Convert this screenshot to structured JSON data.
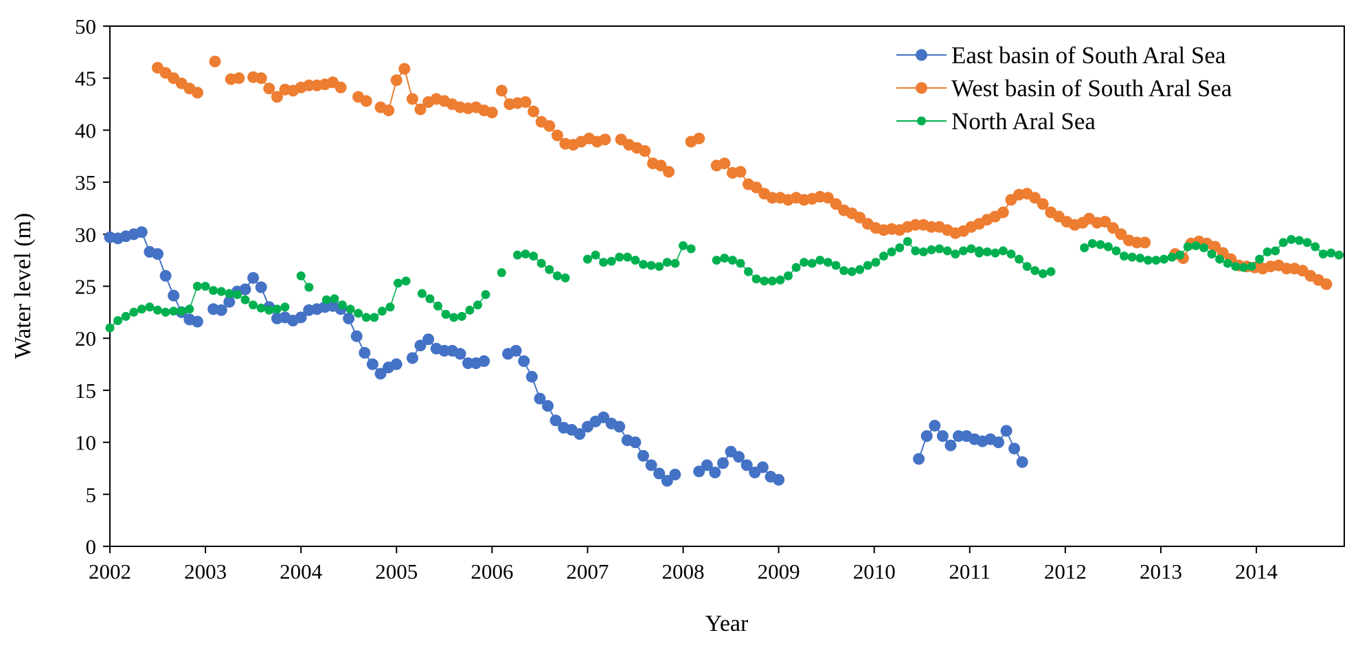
{
  "chart_data": {
    "type": "line",
    "title": "",
    "xlabel": "Year",
    "ylabel": "Water level (m)",
    "xlim": [
      2002.0,
      2014.92
    ],
    "ylim": [
      0,
      50
    ],
    "grid": false,
    "legend_position": "top-right",
    "x_ticks": [
      "2002",
      "2003",
      "2004",
      "2005",
      "2006",
      "2007",
      "2008",
      "2009",
      "2010",
      "2011",
      "2012",
      "2013",
      "2014"
    ],
    "y_ticks": [
      "0",
      "5",
      "10",
      "15",
      "20",
      "25",
      "30",
      "35",
      "40",
      "45",
      "50"
    ],
    "series": [
      {
        "name": "East basin of South Aral Sea",
        "color": "#4472C4",
        "marker_size": "large",
        "segments": [
          {
            "start": 2002.0,
            "step": 0.0833,
            "values": [
              29.7,
              29.6,
              29.8,
              30.0,
              30.2,
              28.3,
              28.1,
              26.0,
              24.1,
              22.5,
              21.8,
              21.6
            ]
          },
          {
            "start": 2003.0833,
            "step": 0.0833,
            "values": [
              22.8,
              22.7,
              23.5,
              24.5,
              24.7,
              25.8,
              24.9,
              23.0,
              21.9,
              22.0,
              21.7,
              22.0,
              22.7,
              22.8,
              23.0,
              23.1,
              22.8,
              21.9,
              20.2,
              18.6,
              17.5,
              16.6,
              17.2,
              17.5
            ]
          },
          {
            "start": 2005.1667,
            "step": 0.0833,
            "values": [
              18.1,
              19.3,
              19.9,
              19.0,
              18.8,
              18.8,
              18.5,
              17.6,
              17.6,
              17.8
            ]
          },
          {
            "start": 2006.1667,
            "step": 0.0833,
            "values": [
              18.5,
              18.8,
              17.8,
              16.3,
              14.2,
              13.5,
              12.1,
              11.4,
              11.2,
              10.8,
              11.5,
              12.0,
              12.4,
              11.8,
              11.5,
              10.2,
              10.0,
              8.7,
              7.8,
              7.0,
              6.3,
              6.9
            ]
          },
          {
            "start": 2008.1667,
            "step": 0.0833,
            "values": [
              7.2,
              7.8,
              7.1,
              8.0,
              9.1,
              8.6,
              7.8,
              7.1,
              7.6,
              6.7,
              6.4
            ]
          },
          {
            "start": 2010.4667,
            "step": 0.0833,
            "values": [
              8.4,
              10.6,
              11.6,
              10.6,
              9.7,
              10.6,
              10.6,
              10.3,
              10.1,
              10.3,
              10.0,
              11.1,
              9.4,
              8.1
            ]
          }
        ]
      },
      {
        "name": "West basin of South Aral Sea",
        "color": "#ED7D31",
        "marker_size": "large",
        "segments": [
          {
            "start": 2002.5,
            "step": 0.0833,
            "values": [
              46.0,
              45.5,
              45.0,
              44.5,
              44.0,
              43.6
            ]
          },
          {
            "start": 2003.1,
            "step": 0.0833,
            "values": [
              46.6
            ]
          },
          {
            "start": 2003.2667,
            "step": 0.0833,
            "values": [
              44.9,
              45.0
            ]
          },
          {
            "start": 2003.5,
            "step": 0.0833,
            "values": [
              45.1,
              45.0,
              44.0,
              43.2,
              43.9,
              43.8,
              44.1,
              44.3,
              44.3,
              44.4,
              44.6,
              44.1
            ]
          },
          {
            "start": 2004.6,
            "step": 0.0833,
            "values": [
              43.2,
              42.8
            ]
          },
          {
            "start": 2004.8333,
            "step": 0.0833,
            "values": [
              42.2,
              41.9,
              44.8,
              45.9,
              43.0,
              42.0,
              42.7,
              43.0,
              42.8,
              42.5,
              42.2,
              42.1,
              42.2,
              41.9,
              41.7
            ]
          },
          {
            "start": 2006.1,
            "step": 0.0833,
            "values": [
              43.8,
              42.5,
              42.6,
              42.7,
              41.8,
              40.8,
              40.4,
              39.5,
              38.7,
              38.6,
              38.9,
              39.2,
              38.9,
              39.1
            ]
          },
          {
            "start": 2007.35,
            "step": 0.0833,
            "values": [
              39.1,
              38.6,
              38.3,
              38.0,
              36.8,
              36.6,
              36.0
            ]
          },
          {
            "start": 2008.0833,
            "step": 0.0833,
            "values": [
              38.9,
              39.2
            ]
          },
          {
            "start": 2008.35,
            "step": 0.0833,
            "values": [
              36.6,
              36.8,
              35.9,
              36.0,
              34.8,
              34.5,
              33.9,
              33.5,
              33.5,
              33.3,
              33.5,
              33.3,
              33.4,
              33.6,
              33.5,
              32.9,
              32.3,
              32.0,
              31.6,
              31.0,
              30.6,
              30.4,
              30.5,
              30.4,
              30.7,
              30.9,
              30.9,
              30.7,
              30.7,
              30.4,
              30.1,
              30.3,
              30.7,
              31.0,
              31.4,
              31.7,
              32.1,
              33.3,
              33.8,
              33.9,
              33.5,
              32.9,
              32.1,
              31.7,
              31.2,
              30.9,
              31.1
            ]
          },
          {
            "start": 2012.25,
            "step": 0.0833,
            "values": [
              31.5,
              31.1,
              31.2,
              30.6,
              30.0,
              29.4,
              29.2,
              29.2
            ]
          },
          {
            "start": 2013.15,
            "step": 0.0833,
            "values": [
              28.1,
              27.7,
              29.1,
              29.3,
              29.1,
              28.8,
              28.2,
              27.6,
              27.0,
              26.9,
              26.8,
              26.7,
              26.9,
              27.0,
              26.7,
              26.7,
              26.5,
              26.0,
              25.6,
              25.2
            ]
          }
        ]
      },
      {
        "name": "North Aral Sea",
        "color": "#00B050",
        "marker_size": "small",
        "segments": [
          {
            "start": 2002.0,
            "step": 0.0833,
            "values": [
              21.0,
              21.7,
              22.1,
              22.5,
              22.8,
              23.0,
              22.7,
              22.5,
              22.6,
              22.6,
              22.8,
              25.0,
              25.0,
              24.6,
              24.5,
              24.3,
              24.2,
              23.7,
              23.2,
              22.9,
              22.7,
              22.8,
              23.0
            ]
          },
          {
            "start": 2004.0,
            "step": 0.0833,
            "values": [
              26.0,
              24.9
            ]
          },
          {
            "start": 2004.2667,
            "step": 0.0833,
            "values": [
              23.7,
              23.8,
              23.2,
              22.8,
              22.4,
              22.0,
              22.0,
              22.6,
              23.0,
              25.3,
              25.5
            ]
          },
          {
            "start": 2005.2667,
            "step": 0.0833,
            "values": [
              24.3,
              23.8,
              23.1,
              22.3,
              22.0,
              22.1,
              22.7,
              23.2,
              24.2
            ]
          },
          {
            "start": 2006.1,
            "step": 0.0833,
            "values": [
              26.3
            ]
          },
          {
            "start": 2006.2667,
            "step": 0.0833,
            "values": [
              28.0,
              28.1,
              27.9,
              27.2,
              26.6,
              26.0,
              25.8
            ]
          },
          {
            "start": 2007.0,
            "step": 0.0833,
            "values": [
              27.6,
              28.0,
              27.3,
              27.4,
              27.8,
              27.8,
              27.5,
              27.1,
              27.0,
              26.9,
              27.3,
              27.2,
              28.9,
              28.6
            ]
          },
          {
            "start": 2008.35,
            "step": 0.0833,
            "values": [
              27.5,
              27.7,
              27.5,
              27.2,
              26.4,
              25.7,
              25.5,
              25.5,
              25.6,
              26.0,
              26.8,
              27.3,
              27.2,
              27.5,
              27.3,
              27.0,
              26.5,
              26.4,
              26.6,
              27.0,
              27.3,
              27.9,
              28.3,
              28.7,
              29.3,
              28.4,
              28.3,
              28.5,
              28.6,
              28.4,
              28.1,
              28.4,
              28.6,
              28.4
            ]
          },
          {
            "start": 2011.1,
            "step": 0.0833,
            "values": [
              28.2,
              28.3,
              28.2,
              28.4,
              28.1,
              27.6,
              26.9,
              26.5,
              26.2,
              26.4
            ]
          },
          {
            "start": 2012.2,
            "step": 0.0833,
            "values": [
              28.7,
              29.1,
              29.0,
              28.8,
              28.4,
              27.9,
              27.8,
              27.7,
              27.5,
              27.5,
              27.6,
              27.8,
              28.0,
              28.8,
              28.9,
              28.7,
              28.1,
              27.6,
              27.2,
              26.9,
              26.8,
              26.9,
              27.6,
              28.3,
              28.4,
              29.2,
              29.5,
              29.4,
              29.2,
              28.8,
              28.1,
              28.2,
              28.0
            ]
          }
        ]
      }
    ]
  }
}
